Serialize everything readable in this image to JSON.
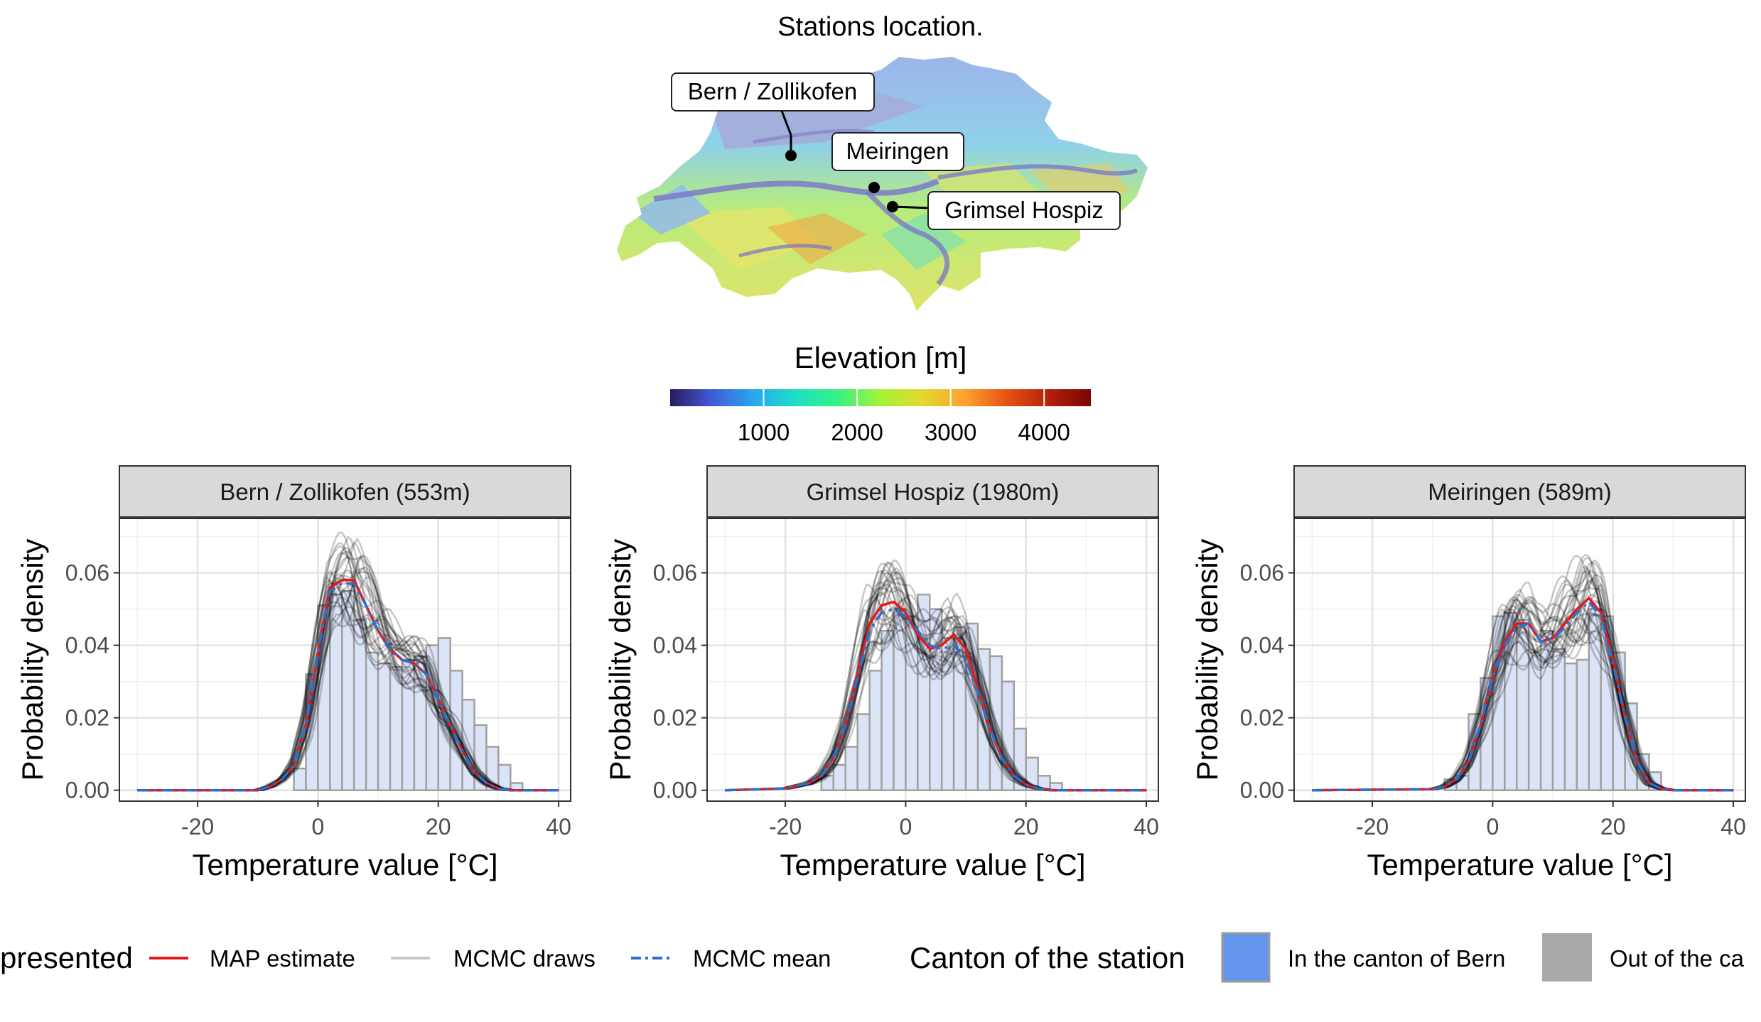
{
  "map": {
    "title": "Stations location.",
    "stations": [
      {
        "name": "Bern / Zollikofen"
      },
      {
        "name": "Meiringen"
      },
      {
        "name": "Grimsel Hospiz"
      }
    ],
    "elevation_legend": {
      "title": "Elevation [m]",
      "ticks": [
        "1000",
        "2000",
        "3000",
        "4000"
      ],
      "tick_values": [
        1000,
        2000,
        3000,
        4000
      ],
      "range": [
        0,
        4500
      ],
      "palette": [
        "#2b1a5e",
        "#3f5bd8",
        "#2aa7f0",
        "#1de0c4",
        "#37f282",
        "#a6f23a",
        "#e4d82c",
        "#fca230",
        "#e55314",
        "#b6200a",
        "#7a0403"
      ]
    }
  },
  "panels_common": {
    "xlabel": "Temperature value [°C]",
    "ylabel": "Probability density",
    "x_ticks": [
      -20,
      0,
      20,
      40
    ],
    "y_ticks": [
      0.0,
      0.02,
      0.04,
      0.06
    ],
    "y_tick_labels": [
      "0.00",
      "0.02",
      "0.04",
      "0.06"
    ]
  },
  "legend": {
    "represented_label": "presented",
    "items": [
      {
        "label": "MAP estimate",
        "color": "#e41a1c"
      },
      {
        "label": "MCMC draws",
        "color": "#c8c8c8"
      },
      {
        "label": "MCMC mean",
        "color": "#2c6fd1"
      }
    ],
    "canton_label": "Canton of the station",
    "canton_items": [
      {
        "label": "In the canton of Bern",
        "color": "#6495ED"
      },
      {
        "label": "Out of the ca",
        "color": "#A9A9A9"
      }
    ]
  },
  "chart_data": [
    {
      "type": "area",
      "title": "Bern / Zollikofen (553m)",
      "canton": "In the canton of Bern",
      "xlabel": "Temperature value [°C]",
      "ylabel": "Probability density",
      "xlim": [
        -33,
        42
      ],
      "ylim": [
        -0.003,
        0.075
      ],
      "grid": true,
      "histogram": {
        "bin_start": -4,
        "bin_width": 2,
        "values": [
          0.006,
          0.032,
          0.051,
          0.054,
          0.055,
          0.047,
          0.038,
          0.035,
          0.034,
          0.036,
          0.037,
          0.04,
          0.042,
          0.033,
          0.025,
          0.018,
          0.012,
          0.007,
          0.002
        ]
      },
      "map_curve": {
        "x": [
          -30,
          -10,
          -8,
          -6,
          -4,
          -2,
          0,
          2,
          4,
          6,
          8,
          10,
          12,
          14,
          16,
          18,
          20,
          22,
          24,
          26,
          28,
          30,
          32,
          40
        ],
        "y": [
          0,
          0,
          0.001,
          0.003,
          0.007,
          0.018,
          0.038,
          0.056,
          0.058,
          0.058,
          0.051,
          0.044,
          0.039,
          0.036,
          0.035,
          0.032,
          0.025,
          0.018,
          0.011,
          0.005,
          0.002,
          0.0005,
          0,
          0
        ]
      },
      "mean_curve": {
        "x": [
          -30,
          -10,
          -8,
          -6,
          -4,
          -2,
          0,
          2,
          4,
          6,
          8,
          10,
          12,
          14,
          16,
          18,
          20,
          22,
          24,
          26,
          28,
          30,
          32,
          40
        ],
        "y": [
          0,
          0,
          0.001,
          0.003,
          0.007,
          0.018,
          0.038,
          0.055,
          0.057,
          0.057,
          0.051,
          0.044,
          0.039,
          0.036,
          0.035,
          0.032,
          0.025,
          0.018,
          0.011,
          0.005,
          0.002,
          0.0005,
          0,
          0
        ]
      }
    },
    {
      "type": "area",
      "title": "Grimsel Hospiz (1980m)",
      "canton": "In the canton of Bern",
      "xlabel": "Temperature value [°C]",
      "ylabel": "Probability density",
      "xlim": [
        -33,
        42
      ],
      "ylim": [
        -0.003,
        0.075
      ],
      "grid": true,
      "histogram": {
        "bin_start": -14,
        "bin_width": 2,
        "values": [
          0.004,
          0.007,
          0.012,
          0.021,
          0.033,
          0.044,
          0.05,
          0.048,
          0.054,
          0.05,
          0.042,
          0.045,
          0.046,
          0.039,
          0.037,
          0.03,
          0.017,
          0.009,
          0.004,
          0.002
        ]
      },
      "map_curve": {
        "x": [
          -30,
          -20,
          -16,
          -14,
          -12,
          -10,
          -8,
          -6,
          -4,
          -2,
          0,
          2,
          4,
          6,
          8,
          10,
          12,
          14,
          16,
          18,
          20,
          22,
          24,
          30,
          40
        ],
        "y": [
          0,
          0.0005,
          0.002,
          0.004,
          0.009,
          0.018,
          0.032,
          0.046,
          0.051,
          0.052,
          0.049,
          0.043,
          0.039,
          0.04,
          0.043,
          0.039,
          0.028,
          0.017,
          0.009,
          0.004,
          0.0015,
          0.0005,
          0,
          0,
          0
        ]
      },
      "mean_curve": {
        "x": [
          -30,
          -20,
          -16,
          -14,
          -12,
          -10,
          -8,
          -6,
          -4,
          -2,
          0,
          2,
          4,
          6,
          8,
          10,
          12,
          14,
          16,
          18,
          20,
          22,
          24,
          30,
          40
        ],
        "y": [
          0,
          0.0005,
          0.002,
          0.004,
          0.009,
          0.018,
          0.031,
          0.044,
          0.049,
          0.05,
          0.048,
          0.044,
          0.04,
          0.039,
          0.04,
          0.036,
          0.027,
          0.017,
          0.009,
          0.004,
          0.0015,
          0.0005,
          0,
          0,
          0
        ]
      }
    },
    {
      "type": "area",
      "title": "Meiringen (589m)",
      "canton": "In the canton of Bern",
      "xlabel": "Temperature value [°C]",
      "ylabel": "Probability density",
      "xlim": [
        -33,
        42
      ],
      "ylim": [
        -0.003,
        0.075
      ],
      "grid": true,
      "histogram": {
        "bin_start": -8,
        "bin_width": 2,
        "values": [
          0.003,
          0.004,
          0.021,
          0.031,
          0.048,
          0.049,
          0.047,
          0.038,
          0.044,
          0.039,
          0.035,
          0.036,
          0.05,
          0.048,
          0.038,
          0.024,
          0.01,
          0.005
        ]
      },
      "map_curve": {
        "x": [
          -30,
          -10,
          -8,
          -6,
          -4,
          -2,
          0,
          2,
          4,
          6,
          8,
          10,
          12,
          14,
          16,
          18,
          20,
          22,
          24,
          26,
          28,
          30,
          40
        ],
        "y": [
          0,
          0.0003,
          0.001,
          0.003,
          0.008,
          0.018,
          0.031,
          0.041,
          0.046,
          0.046,
          0.041,
          0.042,
          0.046,
          0.05,
          0.053,
          0.049,
          0.036,
          0.02,
          0.008,
          0.002,
          0.0005,
          0,
          0
        ]
      },
      "mean_curve": {
        "x": [
          -30,
          -10,
          -8,
          -6,
          -4,
          -2,
          0,
          2,
          4,
          6,
          8,
          10,
          12,
          14,
          16,
          18,
          20,
          22,
          24,
          26,
          28,
          30,
          40
        ],
        "y": [
          0,
          0.0003,
          0.001,
          0.003,
          0.008,
          0.018,
          0.031,
          0.04,
          0.045,
          0.046,
          0.041,
          0.042,
          0.045,
          0.049,
          0.052,
          0.048,
          0.035,
          0.02,
          0.008,
          0.002,
          0.0005,
          0,
          0
        ]
      }
    }
  ]
}
